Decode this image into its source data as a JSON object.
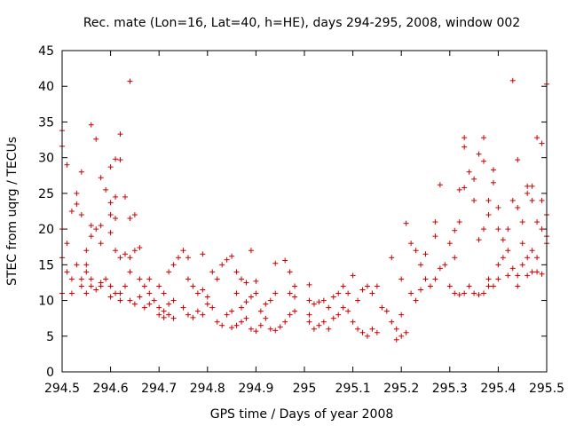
{
  "chart_data": {
    "type": "scatter",
    "title": "Rec. mate (Lon=16, Lat=40, h=HE), days 294-295, 2008, window 002",
    "xlabel": "GPS time / Days of year 2008",
    "ylabel": "STEC from uqrg / TECUs",
    "xlim": [
      294.5,
      295.5
    ],
    "ylim": [
      0,
      45
    ],
    "xticks": [
      294.5,
      294.6,
      294.7,
      294.8,
      294.9,
      295,
      295.1,
      295.2,
      295.3,
      295.4,
      295.5
    ],
    "xtick_labels": [
      "294.5",
      "294.6",
      "294.7",
      "294.8",
      "294.9",
      "295",
      "295.1",
      "295.2",
      "295.3",
      "295.4",
      "295.5"
    ],
    "yticks": [
      0,
      5,
      10,
      15,
      20,
      25,
      30,
      35,
      40,
      45
    ],
    "ytick_labels": [
      "0",
      "5",
      "10",
      "15",
      "20",
      "25",
      "30",
      "35",
      "40",
      "45"
    ],
    "grid": false,
    "marker": "+",
    "colors": {
      "points": "#cc0000",
      "axes": "#000000"
    },
    "series": [
      {
        "points": [
          [
            294.5,
            33.8
          ],
          [
            294.5,
            31.6
          ],
          [
            294.51,
            29
          ],
          [
            294.52,
            22.5
          ],
          [
            294.53,
            25
          ],
          [
            294.53,
            23.5
          ],
          [
            294.54,
            22
          ],
          [
            294.54,
            28
          ],
          [
            294.5,
            20
          ],
          [
            294.51,
            18
          ],
          [
            294.5,
            16
          ],
          [
            294.51,
            14
          ],
          [
            294.52,
            13
          ],
          [
            294.52,
            11
          ],
          [
            294.5,
            11
          ],
          [
            294.54,
            12
          ],
          [
            294.54,
            13
          ],
          [
            294.53,
            15
          ],
          [
            294.55,
            15
          ],
          [
            294.55,
            17
          ],
          [
            294.56,
            19
          ],
          [
            294.56,
            20.5
          ],
          [
            294.57,
            20
          ],
          [
            294.58,
            18
          ],
          [
            294.56,
            34.6
          ],
          [
            294.57,
            32.6
          ],
          [
            294.58,
            27.2
          ],
          [
            294.59,
            25.5
          ],
          [
            294.6,
            23.7
          ],
          [
            294.6,
            22
          ],
          [
            294.61,
            24.5
          ],
          [
            294.61,
            21.5
          ],
          [
            294.6,
            28.7
          ],
          [
            294.61,
            29.8
          ],
          [
            294.62,
            29.7
          ],
          [
            294.62,
            33.3
          ],
          [
            294.64,
            40.7
          ],
          [
            294.63,
            24.5
          ],
          [
            294.64,
            21.5
          ],
          [
            294.65,
            22
          ],
          [
            294.6,
            19.5
          ],
          [
            294.61,
            17
          ],
          [
            294.62,
            16
          ],
          [
            294.63,
            16.5
          ],
          [
            294.64,
            16
          ],
          [
            294.65,
            17
          ],
          [
            294.66,
            17.4
          ],
          [
            294.58,
            20.5
          ],
          [
            294.55,
            14
          ],
          [
            294.56,
            13
          ],
          [
            294.56,
            12
          ],
          [
            294.58,
            12.5
          ],
          [
            294.59,
            13
          ],
          [
            294.6,
            12
          ],
          [
            294.61,
            11
          ],
          [
            294.62,
            10
          ],
          [
            294.55,
            11
          ],
          [
            294.57,
            11.5
          ],
          [
            294.58,
            12
          ],
          [
            294.6,
            10.5
          ],
          [
            294.62,
            11
          ],
          [
            294.63,
            12
          ],
          [
            294.64,
            10
          ],
          [
            294.65,
            9.5
          ],
          [
            294.66,
            10.5
          ],
          [
            294.67,
            9
          ],
          [
            294.68,
            11
          ],
          [
            294.69,
            10
          ],
          [
            294.7,
            8
          ],
          [
            294.71,
            7.6
          ],
          [
            294.72,
            8
          ],
          [
            294.73,
            7.5
          ],
          [
            294.64,
            14
          ],
          [
            294.66,
            13
          ],
          [
            294.67,
            12
          ],
          [
            294.68,
            13
          ],
          [
            294.7,
            12
          ],
          [
            294.71,
            11
          ],
          [
            294.72,
            14
          ],
          [
            294.73,
            15
          ],
          [
            294.74,
            16
          ],
          [
            294.75,
            17
          ],
          [
            294.76,
            16
          ],
          [
            294.76,
            13
          ],
          [
            294.77,
            12
          ],
          [
            294.78,
            11
          ],
          [
            294.79,
            11.5
          ],
          [
            294.8,
            10.5
          ],
          [
            294.68,
            9.5
          ],
          [
            294.7,
            9
          ],
          [
            294.71,
            8.5
          ],
          [
            294.72,
            9.5
          ],
          [
            294.73,
            10
          ],
          [
            294.75,
            9
          ],
          [
            294.76,
            8
          ],
          [
            294.77,
            7.6
          ],
          [
            294.78,
            8.5
          ],
          [
            294.79,
            8
          ],
          [
            294.8,
            9.5
          ],
          [
            294.81,
            9
          ],
          [
            294.82,
            7
          ],
          [
            294.83,
            6.5
          ],
          [
            294.84,
            8
          ],
          [
            294.85,
            8.5
          ],
          [
            294.79,
            16.5
          ],
          [
            294.81,
            14
          ],
          [
            294.82,
            13
          ],
          [
            294.83,
            15
          ],
          [
            294.84,
            15.7
          ],
          [
            294.85,
            16.2
          ],
          [
            294.86,
            14
          ],
          [
            294.87,
            13
          ],
          [
            294.88,
            12.5
          ],
          [
            294.89,
            17
          ],
          [
            294.86,
            11
          ],
          [
            294.87,
            9
          ],
          [
            294.88,
            9.8
          ],
          [
            294.89,
            10.5
          ],
          [
            294.9,
            11
          ],
          [
            294.9,
            12.7
          ],
          [
            294.85,
            6.2
          ],
          [
            294.86,
            6.5
          ],
          [
            294.87,
            7
          ],
          [
            294.88,
            7.5
          ],
          [
            294.89,
            6
          ],
          [
            294.9,
            5.7
          ],
          [
            294.91,
            6.5
          ],
          [
            294.92,
            7.5
          ],
          [
            294.91,
            8.5
          ],
          [
            294.92,
            9.5
          ],
          [
            294.93,
            10
          ],
          [
            294.94,
            11
          ],
          [
            294.94,
            15.2
          ],
          [
            294.96,
            15.6
          ],
          [
            294.97,
            14
          ],
          [
            294.98,
            12
          ],
          [
            294.93,
            6
          ],
          [
            294.94,
            5.8
          ],
          [
            294.95,
            6.3
          ],
          [
            294.96,
            7
          ],
          [
            294.97,
            8
          ],
          [
            294.98,
            8.5
          ],
          [
            294.98,
            10.5
          ],
          [
            294.97,
            11
          ],
          [
            295.01,
            12.2
          ],
          [
            295.01,
            10
          ],
          [
            295.02,
            9.5
          ],
          [
            295.03,
            9.8
          ],
          [
            295.04,
            10
          ],
          [
            295.05,
            9
          ],
          [
            295.06,
            10.5
          ],
          [
            295.07,
            11
          ],
          [
            295.01,
            8
          ],
          [
            295.01,
            7
          ],
          [
            295.02,
            6
          ],
          [
            295.03,
            6.5
          ],
          [
            295.04,
            7
          ],
          [
            295.05,
            6
          ],
          [
            295.06,
            7.5
          ],
          [
            295.07,
            8
          ],
          [
            295.08,
            9
          ],
          [
            295.09,
            8.5
          ],
          [
            295.1,
            7
          ],
          [
            295.11,
            6
          ],
          [
            295.12,
            5.5
          ],
          [
            295.13,
            5
          ],
          [
            295.14,
            6
          ],
          [
            295.15,
            5.5
          ],
          [
            295.08,
            12
          ],
          [
            295.09,
            11
          ],
          [
            295.1,
            13.5
          ],
          [
            295.11,
            10
          ],
          [
            295.12,
            11.5
          ],
          [
            295.13,
            12
          ],
          [
            295.14,
            11
          ],
          [
            295.15,
            12
          ],
          [
            295.16,
            9
          ],
          [
            295.17,
            8.5
          ],
          [
            295.18,
            7
          ],
          [
            295.19,
            6
          ],
          [
            295.18,
            16
          ],
          [
            295.2,
            13
          ],
          [
            295.2,
            8
          ],
          [
            295.21,
            5.5
          ],
          [
            295.19,
            4.5
          ],
          [
            295.2,
            5
          ],
          [
            295.21,
            20.8
          ],
          [
            295.22,
            18
          ],
          [
            295.23,
            17
          ],
          [
            295.24,
            15
          ],
          [
            295.25,
            13
          ],
          [
            295.25,
            16.5
          ],
          [
            295.22,
            11
          ],
          [
            295.23,
            10
          ],
          [
            295.24,
            11.5
          ],
          [
            295.26,
            12
          ],
          [
            295.27,
            13
          ],
          [
            295.27,
            19
          ],
          [
            295.27,
            21
          ],
          [
            295.28,
            26.2
          ],
          [
            295.28,
            14.5
          ],
          [
            295.29,
            15
          ],
          [
            295.3,
            18
          ],
          [
            295.31,
            16
          ],
          [
            295.31,
            19.8
          ],
          [
            295.32,
            21
          ],
          [
            295.32,
            25.5
          ],
          [
            295.33,
            25.8
          ],
          [
            295.33,
            31.5
          ],
          [
            295.33,
            32.8
          ],
          [
            295.34,
            28
          ],
          [
            295.35,
            27
          ],
          [
            295.35,
            24
          ],
          [
            295.36,
            30.5
          ],
          [
            295.37,
            32.8
          ],
          [
            295.37,
            29.5
          ],
          [
            295.36,
            18.5
          ],
          [
            295.37,
            20
          ],
          [
            295.38,
            22
          ],
          [
            295.38,
            24
          ],
          [
            295.39,
            28.3
          ],
          [
            295.39,
            26.5
          ],
          [
            295.4,
            23
          ],
          [
            295.4,
            20
          ],
          [
            295.3,
            12
          ],
          [
            295.31,
            11
          ],
          [
            295.32,
            10.8
          ],
          [
            295.33,
            11
          ],
          [
            295.34,
            12
          ],
          [
            295.35,
            11
          ],
          [
            295.36,
            10.8
          ],
          [
            295.37,
            11
          ],
          [
            295.38,
            12
          ],
          [
            295.38,
            13
          ],
          [
            295.39,
            12
          ],
          [
            295.4,
            13
          ],
          [
            295.4,
            15
          ],
          [
            295.41,
            16
          ],
          [
            295.42,
            17
          ],
          [
            295.42,
            20
          ],
          [
            295.43,
            40.8
          ],
          [
            295.44,
            29.7
          ],
          [
            295.43,
            24
          ],
          [
            295.44,
            23
          ],
          [
            295.45,
            21
          ],
          [
            295.45,
            18
          ],
          [
            295.46,
            26
          ],
          [
            295.46,
            25
          ],
          [
            295.47,
            26
          ],
          [
            295.47,
            24
          ],
          [
            295.48,
            32.8
          ],
          [
            295.49,
            32
          ],
          [
            295.5,
            40.3
          ],
          [
            295.5,
            22
          ],
          [
            295.49,
            20
          ],
          [
            295.48,
            21
          ],
          [
            295.44,
            13.5
          ],
          [
            295.45,
            15
          ],
          [
            295.46,
            16
          ],
          [
            295.46,
            13.5
          ],
          [
            295.47,
            14
          ],
          [
            295.48,
            14
          ],
          [
            295.49,
            13.7
          ],
          [
            295.5,
            19
          ],
          [
            295.42,
            13.5
          ],
          [
            295.43,
            14.5
          ],
          [
            295.44,
            12
          ],
          [
            295.41,
            18.5
          ],
          [
            295.47,
            17
          ],
          [
            295.48,
            16
          ],
          [
            295.5,
            18
          ],
          [
            295.49,
            24
          ]
        ]
      }
    ]
  }
}
